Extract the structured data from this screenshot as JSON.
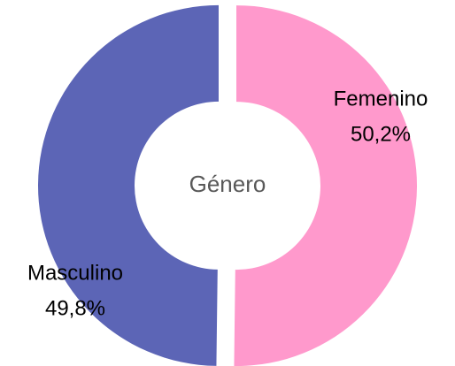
{
  "chart_data": {
    "type": "donut",
    "title": "Género",
    "categories": [
      "Femenino",
      "Masculino"
    ],
    "values": [
      50.2,
      49.8
    ],
    "value_labels": [
      "50,2%",
      "49,8%"
    ],
    "colors": [
      "#ff99cc",
      "#5c65b6"
    ]
  }
}
